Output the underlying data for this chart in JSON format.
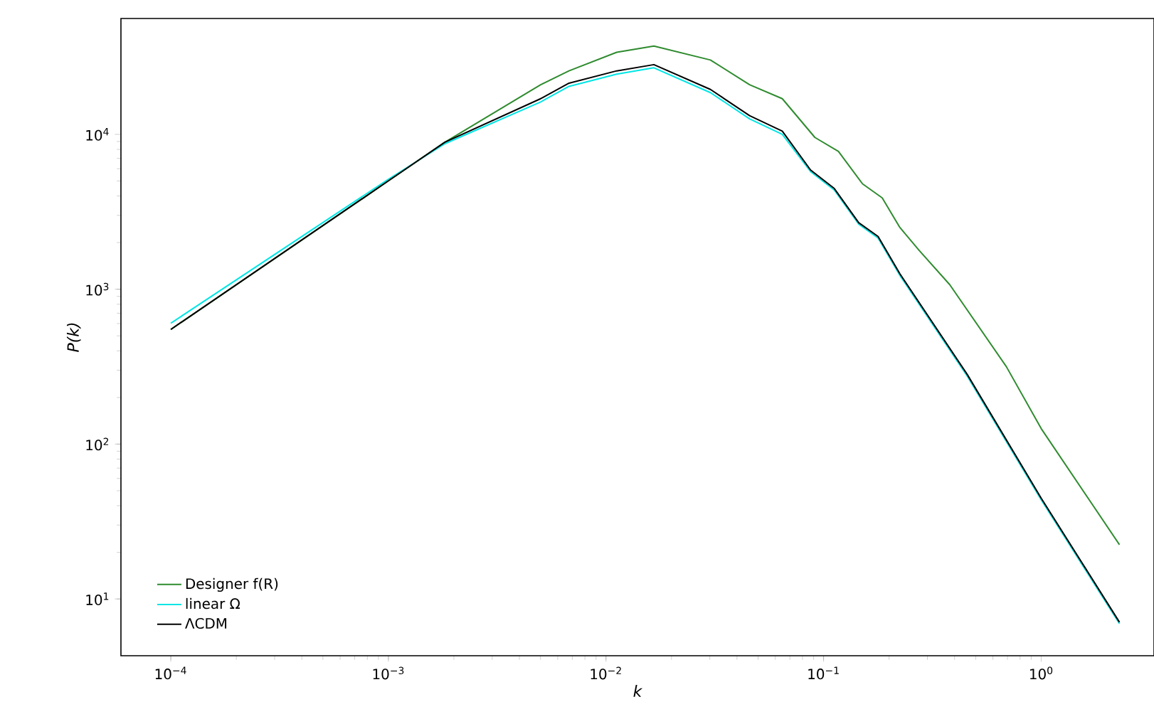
{
  "chart_data": {
    "type": "line",
    "xlabel": "k",
    "ylabel": "P(k)",
    "log": "xy",
    "grid": false,
    "legend": "bottom left",
    "line_style": "solid",
    "marker": "none",
    "xlim": [
      5.9e-05,
      3.3
    ],
    "ylim": [
      4.3,
      56000
    ],
    "xticks": [
      {
        "value": 0.0001,
        "label": "10$^{−4}$"
      },
      {
        "value": 0.001,
        "label": "10$^{−3}$"
      },
      {
        "value": 0.01,
        "label": "10$^{−2}$"
      },
      {
        "value": 0.1,
        "label": "10$^{−1}$"
      },
      {
        "value": 1,
        "label": "10$^{0}$"
      }
    ],
    "yticks": [
      {
        "value": 10,
        "label": "10$^{1}$"
      },
      {
        "value": 100,
        "label": "10$^{2}$"
      },
      {
        "value": 1000,
        "label": "10$^{3}$"
      },
      {
        "value": 10000,
        "label": "10$^{4}$"
      }
    ],
    "series": [
      {
        "name": "Designer f(R)",
        "color": "#2e8b2e",
        "x": [
          0.0001,
          0.001,
          0.00182,
          0.00501,
          0.00676,
          0.0112,
          0.0166,
          0.0302,
          0.0457,
          0.0646,
          0.0912,
          0.117,
          0.151,
          0.186,
          0.224,
          0.275,
          0.38,
          0.692,
          1,
          2.29
        ],
        "values": [
          550,
          5010,
          8910,
          20900,
          25700,
          33900,
          37200,
          30200,
          20900,
          17000,
          9550,
          7760,
          4790,
          3890,
          2510,
          1780,
          1070,
          316,
          126,
          22.4
        ]
      },
      {
        "name": "linear Ω",
        "color": "#00e5e5",
        "x": [
          0.0001,
          0.001,
          0.00182,
          0.00501,
          0.00676,
          0.0112,
          0.0166,
          0.0302,
          0.0457,
          0.0646,
          0.0871,
          0.112,
          0.145,
          0.178,
          0.224,
          0.457,
          1,
          2.29
        ],
        "values": [
          603,
          5130,
          8710,
          16200,
          20400,
          24500,
          26900,
          18600,
          12600,
          10000,
          5750,
          4370,
          2630,
          2140,
          1230,
          275,
          43.7,
          6.92
        ]
      },
      {
        "name": "ΛCDM",
        "color": "#000000",
        "x": [
          0.0001,
          0.001,
          0.00182,
          0.00501,
          0.00676,
          0.0112,
          0.0166,
          0.0302,
          0.0457,
          0.0646,
          0.0871,
          0.112,
          0.145,
          0.178,
          0.224,
          0.457,
          1,
          2.29
        ],
        "values": [
          550,
          5010,
          8910,
          17000,
          21400,
          25700,
          28200,
          19500,
          13200,
          10500,
          5890,
          4470,
          2690,
          2190,
          1260,
          282,
          44.7,
          7.08
        ]
      }
    ]
  }
}
